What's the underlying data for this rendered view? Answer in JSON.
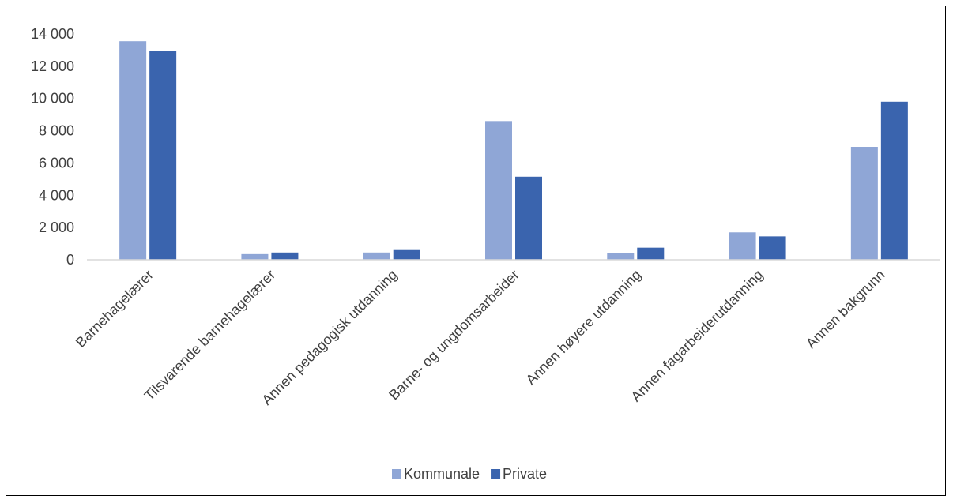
{
  "chart_data": {
    "type": "bar",
    "title": "",
    "xlabel": "",
    "ylabel": "",
    "ylim": [
      0,
      14000
    ],
    "yticks": [
      0,
      2000,
      4000,
      6000,
      8000,
      10000,
      12000,
      14000
    ],
    "ytick_labels": [
      "0",
      "2 000",
      "4 000",
      "6 000",
      "8 000",
      "10 000",
      "12 000",
      "14 000"
    ],
    "grid": false,
    "legend_position": "bottom",
    "categories": [
      "Barnehagelærer",
      "Tilsvarende barnehagelærer",
      "Annen pedagogisk utdanning",
      "Barne- og ungdomsarbeider",
      "Annen høyere utdanning",
      "Annen fagarbeiderutdanning",
      "Annen bakgrunn"
    ],
    "series": [
      {
        "name": "Kommunale",
        "color": "#8FA6D6",
        "values": [
          13550,
          350,
          450,
          8600,
          400,
          1700,
          7000
        ]
      },
      {
        "name": "Private",
        "color": "#3A64AE",
        "values": [
          12950,
          450,
          650,
          5150,
          750,
          1450,
          9800
        ]
      }
    ]
  }
}
